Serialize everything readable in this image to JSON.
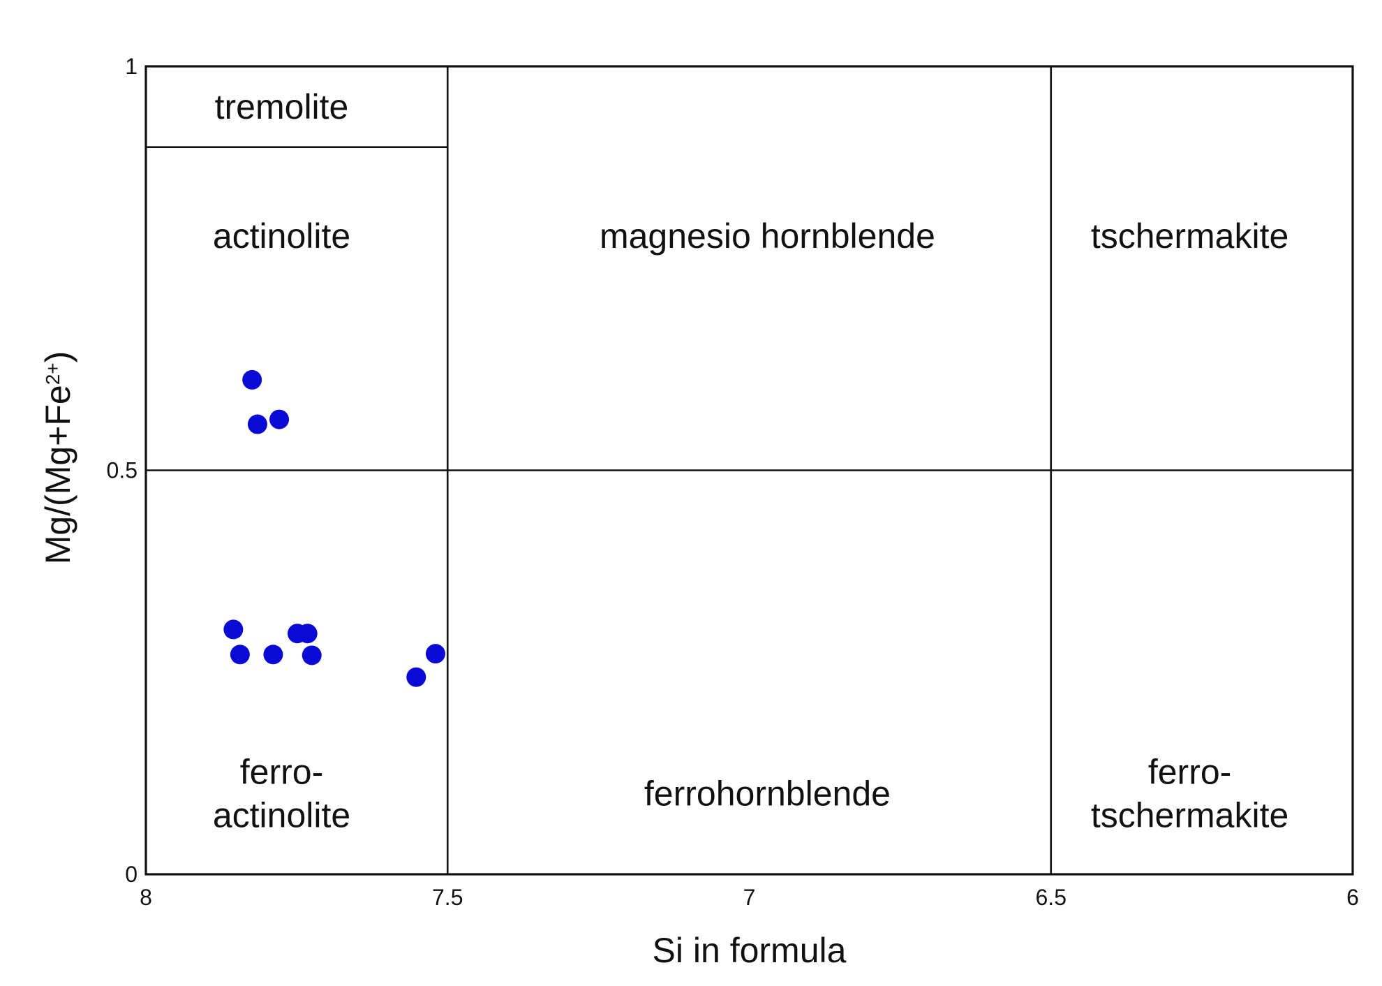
{
  "chart_data": {
    "type": "scatter",
    "title": "",
    "xlabel": "Si in formula",
    "ylabel_parts": {
      "base": "Mg/(Mg+Fe",
      "superscript": "2+",
      "close": ")"
    },
    "xlim": [
      8,
      6
    ],
    "ylim": [
      0,
      1
    ],
    "x_reversed": true,
    "x_ticks": [
      {
        "value": 8,
        "label": "8"
      },
      {
        "value": 7.5,
        "label": "7.5"
      },
      {
        "value": 7,
        "label": "7"
      },
      {
        "value": 6.5,
        "label": "6.5"
      },
      {
        "value": 6,
        "label": "6"
      }
    ],
    "y_ticks": [
      {
        "value": 1,
        "label": "1"
      },
      {
        "value": 0.5,
        "label": "0.5"
      },
      {
        "value": 0,
        "label": "0"
      }
    ],
    "grid": false,
    "legend": "none",
    "boundaries": [
      {
        "x1": 7.5,
        "y1": 0,
        "x2": 7.5,
        "y2": 1
      },
      {
        "x1": 6.5,
        "y1": 0,
        "x2": 6.5,
        "y2": 1
      },
      {
        "x1": 8,
        "y1": 0.5,
        "x2": 6,
        "y2": 0.5
      },
      {
        "x1": 8,
        "y1": 0.9,
        "x2": 7.5,
        "y2": 0.9
      }
    ],
    "fields": [
      {
        "lines": [
          "tremolite"
        ],
        "x": 7.775,
        "y": 0.95
      },
      {
        "lines": [
          "actinolite"
        ],
        "x": 7.775,
        "y": 0.79
      },
      {
        "lines": [
          "magnesio hornblende"
        ],
        "x": 6.97,
        "y": 0.79
      },
      {
        "lines": [
          "tschermakite"
        ],
        "x": 6.27,
        "y": 0.79
      },
      {
        "lines": [
          "ferro-",
          "actinolite"
        ],
        "x": 7.775,
        "y": 0.1
      },
      {
        "lines": [
          "ferrohornblende"
        ],
        "x": 6.97,
        "y": 0.1
      },
      {
        "lines": [
          "ferro-",
          "tschermakite"
        ],
        "x": 6.27,
        "y": 0.1
      }
    ],
    "series": [
      {
        "marker_color": "#0a0ad6",
        "points": [
          {
            "x": 7.824,
            "y": 0.612
          },
          {
            "x": 7.815,
            "y": 0.557
          },
          {
            "x": 7.779,
            "y": 0.563
          },
          {
            "x": 7.855,
            "y": 0.303
          },
          {
            "x": 7.844,
            "y": 0.272
          },
          {
            "x": 7.789,
            "y": 0.272
          },
          {
            "x": 7.749,
            "y": 0.298
          },
          {
            "x": 7.732,
            "y": 0.298
          },
          {
            "x": 7.725,
            "y": 0.271
          },
          {
            "x": 7.52,
            "y": 0.273
          },
          {
            "x": 7.552,
            "y": 0.244
          }
        ]
      }
    ]
  }
}
